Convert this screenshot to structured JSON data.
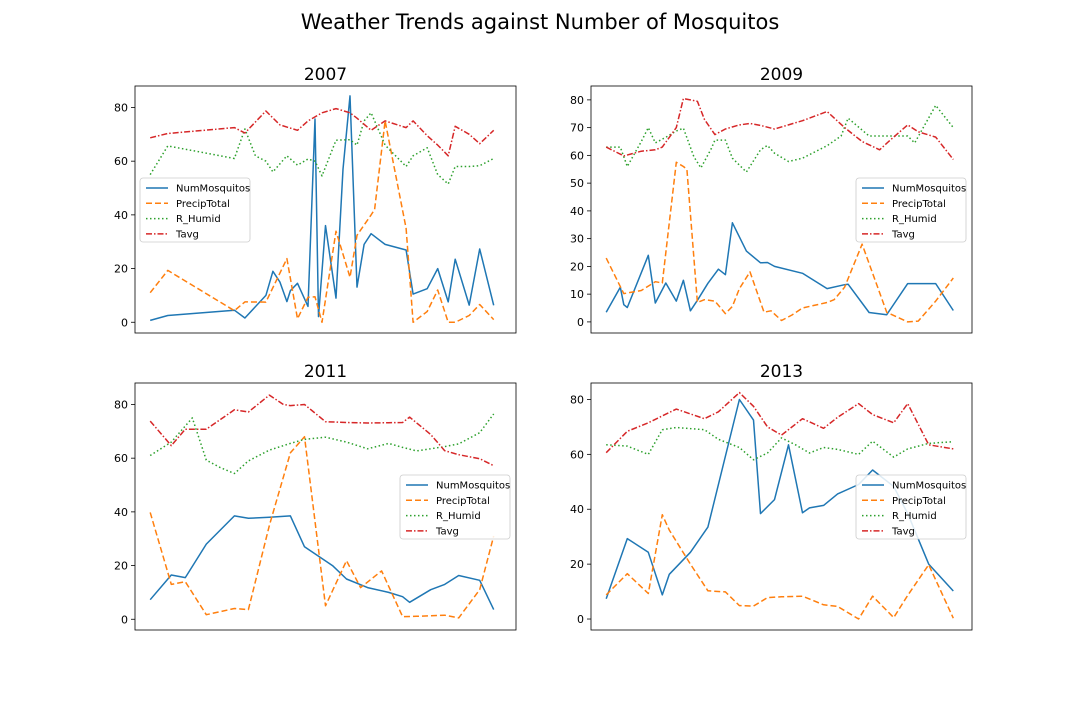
{
  "figure": {
    "title": "Weather Trends against Number of Mosquitos"
  },
  "colors": {
    "NumMosquitos": "#1f77b4",
    "PrecipTotal": "#ff7f0e",
    "R_Humid": "#2ca02c",
    "Tavg": "#d62728"
  },
  "chart_data": [
    {
      "type": "line",
      "title": "2007",
      "xlabel": "",
      "ylabel": "",
      "ylim": [
        -4,
        88
      ],
      "yticks": [
        0,
        20,
        40,
        60,
        80
      ],
      "xaxis": "hidden",
      "legend": "center-left",
      "series": [
        {
          "name": "NumMosquitos",
          "x": [
            0,
            5,
            24,
            27,
            33,
            35,
            37,
            39,
            40,
            42,
            45,
            47,
            48,
            50,
            53,
            55,
            57,
            59,
            61,
            63,
            67,
            73,
            75,
            79,
            82,
            85,
            87,
            91,
            94,
            98
          ],
          "y": [
            0.7,
            2.5,
            4.5,
            1.6,
            10,
            19,
            15,
            7.7,
            11.8,
            14.5,
            5.9,
            75.7,
            2.1,
            36,
            9,
            57,
            84.3,
            13.1,
            29,
            33,
            29,
            26.9,
            10.5,
            12.5,
            20,
            7.6,
            23.5,
            6.4,
            27.3,
            6.3
          ]
        },
        {
          "name": "PrecipTotal",
          "x": [
            0,
            5,
            24,
            27,
            33,
            39,
            42,
            45,
            47,
            49,
            53,
            57,
            59,
            63,
            64,
            67,
            73,
            75,
            79,
            82,
            85,
            87,
            91,
            94,
            98
          ],
          "y": [
            11,
            19.3,
            4.3,
            7.6,
            7.5,
            23.7,
            1.3,
            9.3,
            9.5,
            0,
            33.9,
            16.8,
            32.4,
            40,
            42,
            75,
            35,
            0,
            4,
            12,
            0,
            0,
            2.5,
            6.6,
            1
          ]
        },
        {
          "name": "R_Humid",
          "x": [
            0,
            5,
            24,
            27,
            30,
            33,
            35,
            39,
            42,
            45,
            47,
            49,
            53,
            57,
            59,
            61,
            63,
            67,
            73,
            75,
            79,
            82,
            85,
            87,
            91,
            94,
            98
          ],
          "y": [
            55,
            65.7,
            61,
            72,
            62,
            60,
            56,
            62,
            58.5,
            60.8,
            60,
            54.5,
            67.8,
            68,
            66,
            75,
            78,
            66,
            58,
            62,
            65,
            55,
            51.5,
            58,
            58,
            58.3,
            61
          ]
        },
        {
          "name": "Tavg",
          "x": [
            0,
            5,
            24,
            27,
            33,
            37,
            42,
            45,
            49,
            53,
            57,
            59,
            63,
            67,
            73,
            75,
            79,
            82,
            85,
            87,
            91,
            94,
            98
          ],
          "y": [
            68.7,
            70.3,
            72.5,
            70.5,
            78.7,
            73.5,
            71.5,
            75,
            78,
            79.6,
            78,
            76,
            71.5,
            75,
            72.5,
            75,
            69.5,
            66,
            62,
            73,
            70,
            66.5,
            71.5
          ]
        }
      ]
    },
    {
      "type": "line",
      "title": "2009",
      "xlabel": "",
      "ylabel": "",
      "ylim": [
        -4,
        85
      ],
      "yticks": [
        0,
        10,
        20,
        30,
        40,
        50,
        60,
        70,
        80
      ],
      "xaxis": "hidden",
      "legend": "center-right",
      "series": [
        {
          "name": "NumMosquitos",
          "x": [
            0,
            4,
            5,
            6,
            12,
            14,
            17,
            20,
            22,
            24,
            26,
            29,
            32,
            34,
            36,
            40,
            44,
            46,
            48,
            56,
            63,
            68,
            69,
            75,
            80,
            86,
            91,
            94,
            99
          ],
          "y": [
            3.5,
            12.5,
            6.2,
            5.2,
            24,
            6.8,
            14,
            7.5,
            15,
            4,
            7.8,
            13.9,
            19,
            17,
            35.7,
            25.5,
            21.3,
            21.4,
            20,
            17.5,
            12,
            13.4,
            13.6,
            3.4,
            2.6,
            13.8,
            13.8,
            13.8,
            4.1
          ]
        },
        {
          "name": "PrecipTotal",
          "x": [
            0,
            5,
            10,
            14,
            16,
            20,
            22,
            23,
            26,
            28,
            31,
            34,
            36,
            38,
            41,
            45,
            47,
            50,
            53,
            56,
            63,
            65,
            68,
            73,
            80,
            86,
            89,
            94,
            99
          ],
          "y": [
            23,
            10.2,
            11.3,
            14.5,
            14,
            57.5,
            56,
            55,
            7,
            8,
            7.5,
            3,
            5.6,
            12,
            18,
            3.5,
            4,
            0.5,
            2.5,
            5,
            7,
            8,
            12.5,
            28,
            3.5,
            0,
            0.3,
            7.5,
            15.8
          ]
        },
        {
          "name": "R_Humid",
          "x": [
            0,
            4,
            6,
            10,
            12,
            14,
            17,
            20,
            22,
            25,
            27,
            30,
            31,
            34,
            36,
            40,
            44,
            46,
            48,
            52,
            56,
            63,
            67,
            69,
            75,
            80,
            86,
            88,
            94,
            99
          ],
          "y": [
            63,
            63,
            56,
            65,
            70,
            64.5,
            66.5,
            68.8,
            69.8,
            59.5,
            55.5,
            62.5,
            65.5,
            65.5,
            59,
            54,
            62,
            63.6,
            60.8,
            57.8,
            59,
            63.5,
            67,
            73.4,
            67,
            67,
            67,
            64.5,
            78,
            70
          ]
        },
        {
          "name": "Tavg",
          "x": [
            0,
            5,
            10,
            14,
            16,
            20,
            22,
            26,
            28,
            31,
            34,
            38,
            41,
            44,
            48,
            56,
            63,
            68,
            73,
            78,
            81,
            86,
            89,
            94,
            99
          ],
          "y": [
            63,
            59.8,
            61.5,
            62,
            63,
            70,
            80.5,
            79.5,
            73,
            67.5,
            69.5,
            71,
            71.5,
            70.8,
            69.5,
            72.5,
            75.8,
            70,
            65,
            62,
            65.5,
            71,
            68.5,
            66.6,
            58.5
          ]
        }
      ]
    },
    {
      "type": "line",
      "title": "2011",
      "xlabel": "",
      "ylabel": "",
      "ylim": [
        -4,
        88
      ],
      "yticks": [
        0,
        20,
        40,
        60,
        80
      ],
      "xaxis": "hidden",
      "legend": "center-right",
      "series": [
        {
          "name": "NumMosquitos",
          "x": [
            0,
            6,
            10,
            16,
            24,
            28,
            34,
            40,
            44,
            52,
            56,
            62,
            68,
            72,
            74,
            80,
            84,
            88,
            94,
            98
          ],
          "y": [
            7.3,
            16.5,
            15.5,
            28,
            38.5,
            37.6,
            38,
            38.5,
            27,
            20,
            15,
            11.8,
            10,
            8.4,
            6.3,
            11,
            13,
            16.3,
            14.5,
            3.6
          ]
        },
        {
          "name": "PrecipTotal",
          "x": [
            0,
            6,
            10,
            16,
            24,
            28,
            34,
            40,
            44,
            50,
            56,
            60,
            66,
            72,
            76,
            80,
            84,
            88,
            94,
            98
          ],
          "y": [
            39.8,
            13,
            14,
            1.7,
            4,
            3.6,
            35,
            62,
            68,
            5,
            21.8,
            11.8,
            18,
            1,
            1.1,
            1.3,
            1.5,
            0.5,
            11,
            31
          ]
        },
        {
          "name": "R_Humid",
          "x": [
            0,
            6,
            12,
            16,
            20,
            24,
            28,
            34,
            40,
            44,
            50,
            56,
            62,
            68,
            72,
            76,
            80,
            84,
            88,
            94,
            98
          ],
          "y": [
            61,
            66,
            75,
            59.3,
            56.5,
            54.3,
            59,
            63,
            65.5,
            67,
            67.8,
            66,
            63.5,
            65.5,
            64,
            62.7,
            63.5,
            64.3,
            65.3,
            69.5,
            76.5
          ]
        },
        {
          "name": "Tavg",
          "x": [
            0,
            6,
            10,
            16,
            24,
            28,
            34,
            38,
            40,
            44,
            50,
            56,
            62,
            68,
            72,
            74,
            80,
            84,
            88,
            94,
            98
          ],
          "y": [
            73.8,
            64.7,
            70.8,
            70.8,
            78,
            77.2,
            83.5,
            80,
            79.6,
            80,
            73.6,
            73.3,
            73.1,
            73.2,
            73.3,
            75.3,
            68.8,
            62.8,
            61.3,
            59.8,
            57.2
          ]
        }
      ]
    },
    {
      "type": "line",
      "title": "2013",
      "xlabel": "",
      "ylabel": "",
      "ylim": [
        -4,
        86
      ],
      "yticks": [
        0,
        20,
        40,
        60,
        80
      ],
      "xaxis": "hidden",
      "legend": "center-right",
      "series": [
        {
          "name": "NumMosquitos",
          "x": [
            0,
            6,
            12,
            16,
            18,
            24,
            29,
            38,
            42,
            44,
            48,
            52,
            56,
            58,
            62,
            66,
            72,
            76,
            82,
            86,
            92,
            99
          ],
          "y": [
            7.4,
            29.3,
            24.3,
            8.8,
            16.3,
            24.3,
            33.5,
            80,
            72.5,
            38.4,
            43.5,
            63.5,
            38.7,
            40.5,
            41.4,
            45.6,
            49,
            54.3,
            48.3,
            38.4,
            20,
            10.2
          ]
        },
        {
          "name": "PrecipTotal",
          "x": [
            0,
            6,
            12,
            16,
            18,
            24,
            29,
            34,
            38,
            42,
            46,
            50,
            56,
            62,
            66,
            72,
            76,
            82,
            86,
            92,
            99
          ],
          "y": [
            8.8,
            16.5,
            9.3,
            38,
            32.4,
            20,
            10.3,
            9.9,
            4.9,
            4.7,
            7.8,
            8.1,
            8.3,
            5.2,
            4.6,
            0,
            8.3,
            0.5,
            8.6,
            19.8,
            0.3
          ]
        },
        {
          "name": "R_Humid",
          "x": [
            0,
            6,
            12,
            16,
            20,
            28,
            32,
            38,
            42,
            46,
            50,
            54,
            58,
            62,
            66,
            72,
            76,
            82,
            86,
            92,
            99
          ],
          "y": [
            63.5,
            63,
            60,
            69,
            69.8,
            69,
            65.5,
            62.5,
            58,
            60.5,
            66,
            63.5,
            60.5,
            62.5,
            61.8,
            60,
            64.8,
            59,
            62,
            64,
            64.6
          ]
        },
        {
          "name": "Tavg",
          "x": [
            0,
            6,
            12,
            16,
            20,
            28,
            32,
            38,
            42,
            46,
            50,
            56,
            62,
            66,
            72,
            76,
            82,
            86,
            92,
            99
          ],
          "y": [
            60.6,
            68.4,
            71.5,
            74,
            76.5,
            73,
            75.5,
            82.5,
            77.5,
            70,
            67,
            73,
            69.5,
            73.5,
            78.5,
            74.5,
            71.5,
            78.5,
            63.5,
            62
          ]
        }
      ]
    }
  ]
}
